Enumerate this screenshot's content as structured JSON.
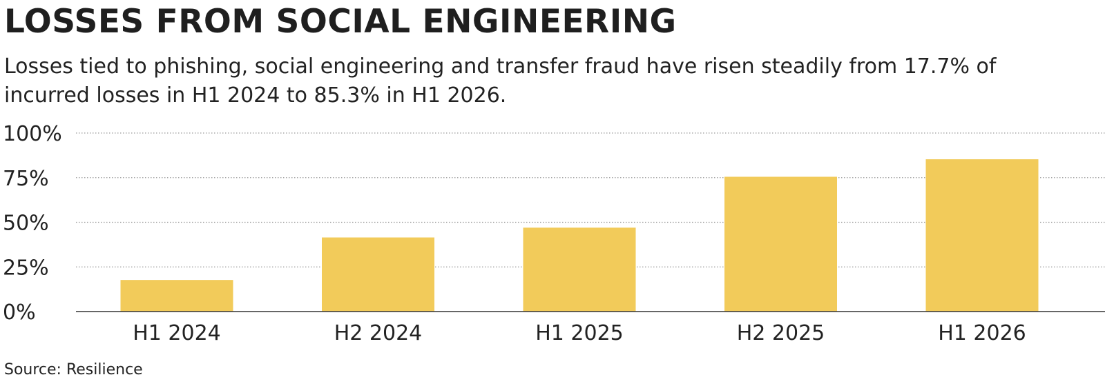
{
  "chart_data": {
    "type": "bar",
    "title": "LOSSES FROM SOCIAL ENGINEERING",
    "subtitle": "Losses tied to phishing, social engineering and transfer fraud have risen steadily from 17.7% of incurred losses in H1 2024 to 85.3% in H1 2026.",
    "source": "Source: Resilience",
    "categories": [
      "H1 2024",
      "H2 2024",
      "H1 2025",
      "H2 2025",
      "H1 2026"
    ],
    "values": [
      17.7,
      41.5,
      47.0,
      75.5,
      85.3
    ],
    "xlabel": "",
    "ylabel": "",
    "ylim": [
      0,
      100
    ],
    "yticks": [
      0,
      25,
      50,
      75,
      100
    ],
    "ytick_labels": [
      "0%",
      "25%",
      "50%",
      "75%",
      "100%"
    ],
    "grid": true,
    "bar_color": "#f2cb5a",
    "gridline_color": "#9a9a9a",
    "axis_color": "#333333"
  }
}
